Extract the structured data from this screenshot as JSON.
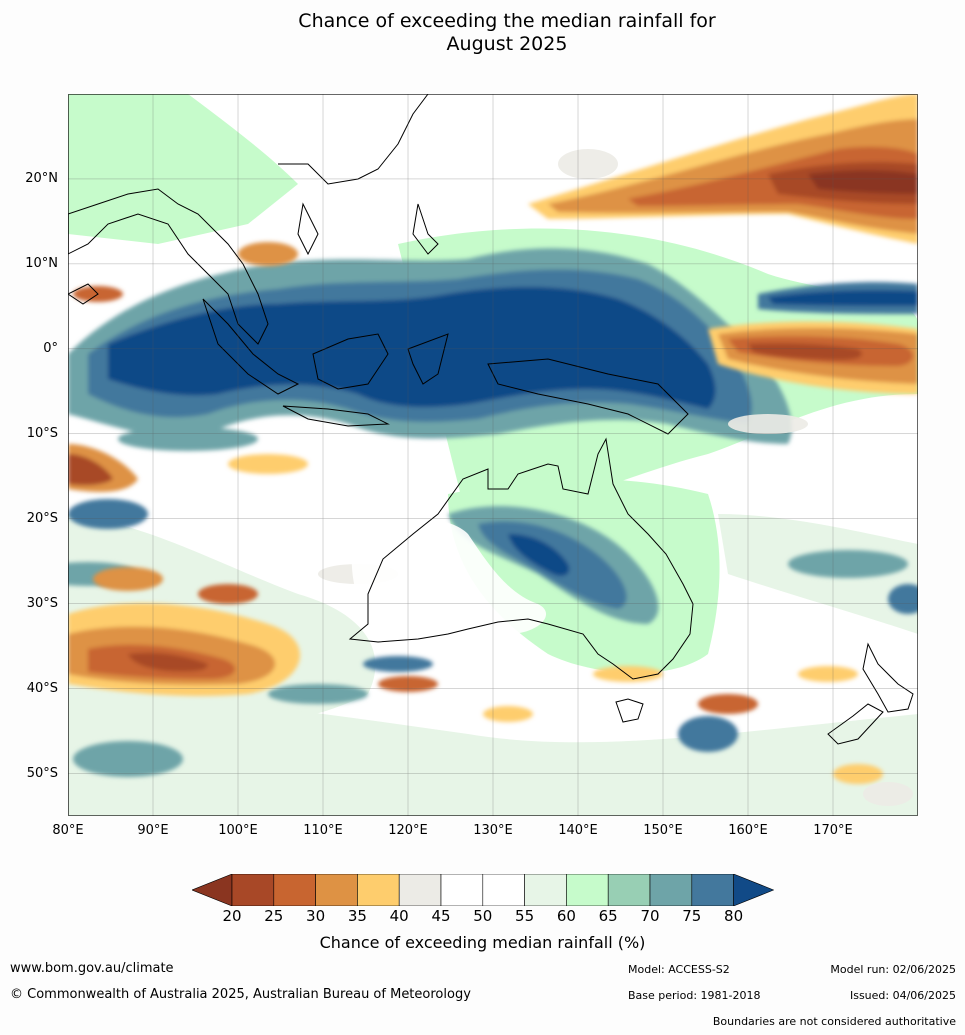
{
  "title": "Chance of exceeding the median rainfall for\nAugust 2025",
  "map": {
    "lat_range": [
      -55,
      30
    ],
    "lon_range": [
      80,
      180
    ],
    "lat_ticks": [
      "20°N",
      "10°N",
      "0°",
      "10°S",
      "20°S",
      "30°S",
      "40°S",
      "50°S"
    ],
    "lon_ticks": [
      "80°E",
      "90°E",
      "100°E",
      "110°E",
      "120°E",
      "130°E",
      "140°E",
      "150°E",
      "160°E",
      "170°E"
    ]
  },
  "colorbar": {
    "ticks": [
      "20",
      "25",
      "30",
      "35",
      "40",
      "45",
      "50",
      "55",
      "60",
      "65",
      "70",
      "75",
      "80"
    ],
    "under_color": "#8a3520",
    "over_color": "#114a87",
    "colors": [
      "#a84827",
      "#c86530",
      "#de9244",
      "#fecd6d",
      "#ecebe6",
      "#ffffff",
      "#ffffff",
      "#e7f5e7",
      "#c6fbcb",
      "#98cfb4",
      "#6ea4a8",
      "#43789d"
    ],
    "label": "Chance of exceeding median rainfall (%)"
  },
  "footer": {
    "site": "www.bom.gov.au/climate",
    "copyright": "© Commonwealth of Australia 2025, Australian Bureau of Meteorology",
    "model": "Model: ACCESS-S2",
    "base_period": "Base period: 1981-2018",
    "model_run": "Model run: 02/06/2025",
    "issued": "Issued: 04/06/2025",
    "boundaries_note": "Boundaries are not considered authoritative"
  }
}
